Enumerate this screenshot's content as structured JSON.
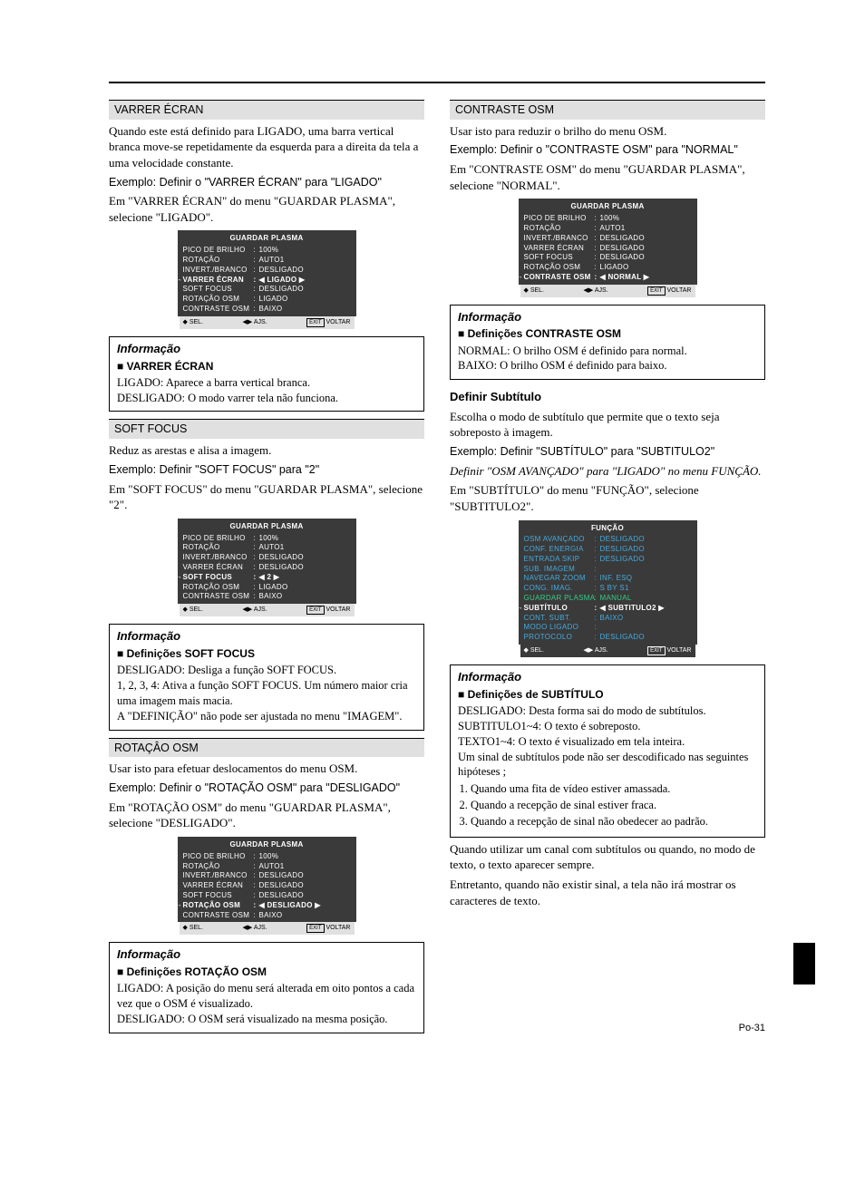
{
  "page_number": "Po-31",
  "osd_footer": {
    "sel": "SEL.",
    "ajs": "AJS.",
    "exit": "EXIT",
    "voltar": "VOLTAR"
  },
  "info_heading": "Informação",
  "left": {
    "sec1": {
      "heading": "VARRER ÉCRAN",
      "p1": "Quando este está definido para LIGADO, uma barra vertical branca move-se repetidamente da esquerda para a direita da tela a uma velocidade constante.",
      "ex": "Exemplo: Definir o \"VARRER ÉCRAN\" para \"LIGADO\"",
      "p2": "Em \"VARRER ÉCRAN\" do menu \"GUARDAR PLASMA\", selecione \"LIGADO\".",
      "osd": {
        "title": "GUARDAR PLASMA",
        "rows": [
          {
            "label": "PICO DE BRILHO",
            "val": "100%"
          },
          {
            "label": "ROTAÇÃO",
            "val": "AUTO1"
          },
          {
            "label": "INVERT./BRANCO",
            "val": "DESLIGADO"
          },
          {
            "label": "VARRER ÉCRAN",
            "val": "◀ LIGADO ▶",
            "active": true
          },
          {
            "label": "SOFT FOCUS",
            "val": "DESLIGADO"
          },
          {
            "label": "ROTAÇÃO OSM",
            "val": "LIGADO"
          },
          {
            "label": "CONTRASTE OSM",
            "val": "BAIXO"
          }
        ]
      },
      "info_sub": "VARRER ÉCRAN",
      "info_body1": "LIGADO: Aparece a barra vertical branca.",
      "info_body2": "DESLIGADO: O modo varrer tela não funciona."
    },
    "sec2": {
      "heading": "SOFT FOCUS",
      "p1": "Reduz as arestas e alisa a imagem.",
      "ex": "Exemplo: Definir \"SOFT FOCUS\" para \"2\"",
      "p2": "Em \"SOFT FOCUS\" do menu \"GUARDAR PLASMA\", selecione \"2\".",
      "osd": {
        "title": "GUARDAR PLASMA",
        "rows": [
          {
            "label": "PICO DE BRILHO",
            "val": "100%"
          },
          {
            "label": "ROTAÇÃO",
            "val": "AUTO1"
          },
          {
            "label": "INVERT./BRANCO",
            "val": "DESLIGADO"
          },
          {
            "label": "VARRER ÉCRAN",
            "val": "DESLIGADO"
          },
          {
            "label": "SOFT FOCUS",
            "val": "◀ 2 ▶",
            "active": true
          },
          {
            "label": "ROTAÇÃO OSM",
            "val": "LIGADO"
          },
          {
            "label": "CONTRASTE OSM",
            "val": "BAIXO"
          }
        ]
      },
      "info_sub": "Definições SOFT FOCUS",
      "info_body1": "DESLIGADO: Desliga a função SOFT FOCUS.",
      "info_body2": "1, 2, 3, 4: Ativa a função SOFT FOCUS. Um número maior cria uma imagem mais macia.",
      "info_body3": "A \"DEFINIÇÃO\" não pode ser ajustada no menu \"IMAGEM\"."
    },
    "sec3": {
      "heading": "ROTAÇÂO OSM",
      "p1": "Usar isto para efetuar deslocamentos do menu OSM.",
      "ex": "Exemplo: Definir o \"ROTAÇÃO OSM\" para \"DESLIGADO\"",
      "p2": "Em \"ROTAÇÃO OSM\" do menu \"GUARDAR PLASMA\", selecione \"DESLIGADO\".",
      "osd": {
        "title": "GUARDAR PLASMA",
        "rows": [
          {
            "label": "PICO DE BRILHO",
            "val": "100%"
          },
          {
            "label": "ROTAÇÃO",
            "val": "AUTO1"
          },
          {
            "label": "INVERT./BRANCO",
            "val": "DESLIGADO"
          },
          {
            "label": "VARRER ÉCRAN",
            "val": "DESLIGADO"
          },
          {
            "label": "SOFT FOCUS",
            "val": "DESLIGADO"
          },
          {
            "label": "ROTAÇÃO OSM",
            "val": "◀ DESLIGADO ▶",
            "active": true
          },
          {
            "label": "CONTRASTE OSM",
            "val": "BAIXO"
          }
        ]
      },
      "info_sub": "Definições ROTAÇÃO OSM",
      "info_body1": "LIGADO: A posição do menu será alterada em oito pontos a cada vez que o OSM é visualizado.",
      "info_body2": "DESLIGADO: O OSM será visualizado na mesma posição."
    }
  },
  "right": {
    "sec1": {
      "heading": "CONTRASTE OSM",
      "p1": "Usar isto para reduzir o brilho do menu OSM.",
      "ex": "Exemplo: Definir o \"CONTRASTE OSM\" para \"NORMAL\"",
      "p2": "Em \"CONTRASTE OSM\" do menu \"GUARDAR PLASMA\", selecione \"NORMAL\".",
      "osd": {
        "title": "GUARDAR PLASMA",
        "rows": [
          {
            "label": "PICO DE BRILHO",
            "val": "100%"
          },
          {
            "label": "ROTAÇÃO",
            "val": "AUTO1"
          },
          {
            "label": "INVERT./BRANCO",
            "val": "DESLIGADO"
          },
          {
            "label": "VARRER ÉCRAN",
            "val": "DESLIGADO"
          },
          {
            "label": "SOFT FOCUS",
            "val": "DESLIGADO"
          },
          {
            "label": "ROTAÇÃO OSM",
            "val": "LIGADO"
          },
          {
            "label": "CONTRASTE OSM",
            "val": "◀ NORMAL ▶",
            "active": true
          }
        ]
      },
      "info_sub": "Definições CONTRASTE OSM",
      "info_body1": "NORMAL: O brilho OSM é definido para normal.",
      "info_body2": "BAIXO: O brilho OSM é definido para baixo."
    },
    "sec2": {
      "heading": "Definir Subtítulo",
      "p1": "Escolha o modo de subtítulo que permite que o texto seja sobreposto à imagem.",
      "ex": "Exemplo: Definir \"SUBTÍTULO\" para \"SUBTITULO2\"",
      "p_it": "Definir \"OSM AVANÇADO\" para \"LIGADO\" no menu FUNÇÃO.",
      "p2": "Em \"SUBTÍTULO\" do menu \"FUNÇÃO\", selecione \"SUBTITULO2\".",
      "osd": {
        "title": "FUNÇÃO",
        "rows": [
          {
            "label": "OSM AVANÇADO",
            "val": "DESLIGADO",
            "cyan": true
          },
          {
            "label": "CONF. ENERGIA",
            "val": "DESLIGADO",
            "cyan": true
          },
          {
            "label": "ENTRADA SKIP",
            "val": "DESLIGADO",
            "cyan": true
          },
          {
            "label": "SUB. IMAGEM",
            "val": "",
            "cyan": true
          },
          {
            "label": "NAVEGAR ZOOM",
            "val": "INF. ESQ",
            "cyan": true
          },
          {
            "label": "CONG. IMAG.",
            "val": "S BY S1",
            "cyan": true
          },
          {
            "label": "GUARDAR PLASMA",
            "val": "MANUAL",
            "green": true
          },
          {
            "label": "SUBTÍTULO",
            "val": "◀ SUBTITULO2 ▶",
            "active": true
          },
          {
            "label": "CONT. SUBT.",
            "val": "BAIXO",
            "cyan": true
          },
          {
            "label": "MODO LIGADO",
            "val": "",
            "cyan": true
          },
          {
            "label": "PROTOCOLO",
            "val": "DESLIGADO",
            "cyan": true
          }
        ]
      },
      "info_sub": "Definições de SUBTÍTULO",
      "info_body1": "DESLIGADO: Desta forma sai do modo de subtítulos.",
      "info_body2": "SUBTITULO1~4: O texto é sobreposto.",
      "info_body3": "TEXTO1~4: O texto é visualizado em tela inteira.",
      "info_body4": "Um sinal de subtítulos pode não ser descodificado nas seguintes hipóteses ;",
      "li1": "Quando uma fita de vídeo estiver amassada.",
      "li2": "Quando a recepção de sinal estiver fraca.",
      "li3": "Quando a recepção de sinal não obedecer ao padrão.",
      "p_after1": "Quando utilizar um canal com subtítulos ou quando, no modo de texto, o texto aparecer sempre.",
      "p_after2": "Entretanto, quando não existir sinal, a tela não irá mostrar os caracteres de texto."
    }
  }
}
